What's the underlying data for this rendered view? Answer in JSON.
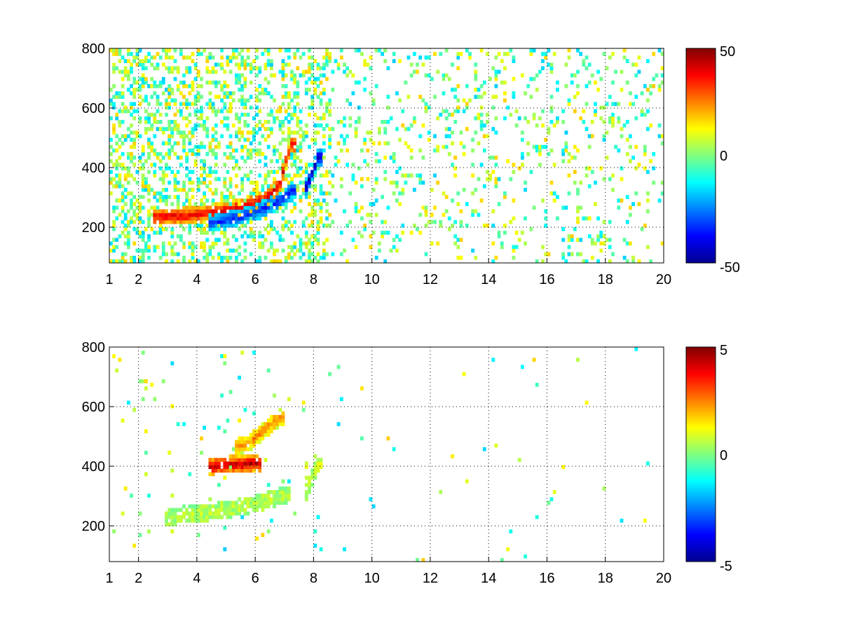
{
  "chart_data": [
    {
      "type": "heatmap",
      "title": "",
      "xlabel": "",
      "ylabel": "",
      "xlim": [
        1,
        20
      ],
      "ylim": [
        80,
        800
      ],
      "xticks": [
        "1",
        "2",
        "4",
        "6",
        "8",
        "10",
        "12",
        "14",
        "16",
        "18",
        "20"
      ],
      "yticks": [
        "200",
        "400",
        "600",
        "800"
      ],
      "grid": "dotted",
      "colormap": "jet",
      "colorbar": {
        "min": -50,
        "max": 50,
        "ticks": [
          "50",
          "0",
          "-50"
        ]
      },
      "features": [
        {
          "name": "main ridge",
          "x": [
            2.6,
            3.5,
            4.5,
            5.5,
            6.3,
            6.8,
            7.0,
            7.2
          ],
          "y": [
            230,
            232,
            245,
            262,
            290,
            340,
            420,
            470
          ],
          "value": 40
        },
        {
          "name": "secondary ridge",
          "x": [
            4.5,
            5.5,
            6.3,
            6.9,
            7.2
          ],
          "y": [
            210,
            230,
            260,
            290,
            320
          ],
          "value": -35
        },
        {
          "name": "blue blob",
          "x": [
            7.7,
            7.9,
            8.1
          ],
          "y": [
            330,
            380,
            430
          ],
          "value": -45
        }
      ]
    },
    {
      "type": "heatmap",
      "title": "",
      "xlabel": "",
      "ylabel": "",
      "xlim": [
        1,
        20
      ],
      "ylim": [
        80,
        800
      ],
      "xticks": [
        "1",
        "2",
        "4",
        "6",
        "8",
        "10",
        "12",
        "14",
        "16",
        "18",
        "20"
      ],
      "yticks": [
        "200",
        "400",
        "600",
        "800"
      ],
      "grid": "dotted",
      "colormap": "jet",
      "colorbar": {
        "min": -5,
        "max": 5,
        "ticks": [
          "5",
          "0",
          "-5"
        ]
      },
      "features": [
        {
          "name": "lower band",
          "x": [
            3.0,
            4.0,
            5.0,
            6.0,
            7.0
          ],
          "y": [
            225,
            235,
            250,
            270,
            300
          ],
          "value": 0.6
        },
        {
          "name": "upper red band",
          "x": [
            4.5,
            5.0,
            5.5,
            6.0
          ],
          "y": [
            395,
            400,
            402,
            405
          ],
          "value": 4.5
        },
        {
          "name": "orange cluster",
          "x": [
            5.3,
            5.8,
            6.3,
            6.8
          ],
          "y": [
            460,
            480,
            520,
            560
          ],
          "value": 2.5
        },
        {
          "name": "right blob",
          "x": [
            7.7,
            7.9,
            8.1
          ],
          "y": [
            310,
            360,
            400
          ],
          "value": 0.8
        }
      ]
    }
  ]
}
